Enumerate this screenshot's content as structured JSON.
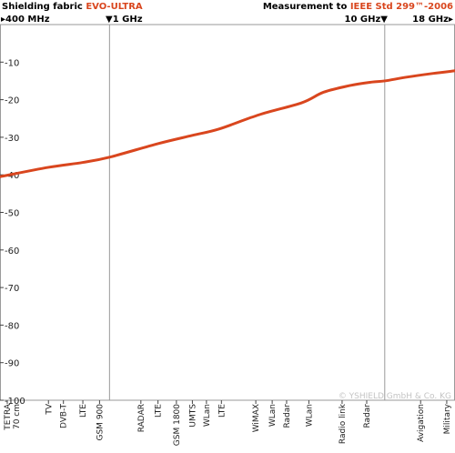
{
  "header": {
    "left_prefix": "Shielding fabric ",
    "left_product": "EVO-ULTRA",
    "right_prefix": "Measurement to ",
    "right_standard": "IEEE Std 299™-2006",
    "freq_start": "400 MHz",
    "freq_1ghz": "1 GHz",
    "freq_10ghz": "10 GHz",
    "freq_end": "18 GHz"
  },
  "copyright": "© YSHIELD GmbH & Co. KG",
  "colors": {
    "curve": "#d9461e",
    "grid": "#9a9a9a",
    "accent": "#d9461e"
  },
  "chart_data": {
    "type": "line",
    "title": "",
    "xlabel": "",
    "ylabel": "",
    "xscale": "log",
    "xlim_mhz": [
      400,
      18000
    ],
    "ylim": [
      -100,
      0
    ],
    "yticks": [
      -10,
      -20,
      -30,
      -40,
      -50,
      -60,
      -70,
      -80,
      -90,
      -100
    ],
    "marker_lines_mhz": [
      1000,
      10000
    ],
    "series": [
      {
        "x_mhz": [
          400,
          600,
          800,
          1000,
          1500,
          2000,
          2500,
          3500,
          5000,
          6000,
          7500,
          9000,
          10000,
          12000,
          15000,
          18000
        ],
        "y_db": [
          -40.5,
          -38,
          -36.7,
          -35.3,
          -31.7,
          -29.5,
          -27.8,
          -24,
          -20.8,
          -18,
          -16.2,
          -15.3,
          -15,
          -14,
          -13,
          -12.3
        ]
      }
    ],
    "categories": [
      {
        "label": "TETRA",
        "label2": "70 cm",
        "x_mhz": 400
      },
      {
        "label": "TV",
        "x_mhz": 600
      },
      {
        "label": "DVB-T",
        "x_mhz": 680
      },
      {
        "label": "LTE",
        "x_mhz": 800
      },
      {
        "label": "GSM 900",
        "x_mhz": 920
      },
      {
        "label": "RADAR",
        "x_mhz": 1300
      },
      {
        "label": "LTE",
        "x_mhz": 1500
      },
      {
        "label": "GSM 1800",
        "x_mhz": 1750
      },
      {
        "label": "UMTS",
        "x_mhz": 2000
      },
      {
        "label": "WLan",
        "x_mhz": 2250
      },
      {
        "label": "LTE",
        "x_mhz": 2550
      },
      {
        "label": "WiMAX",
        "x_mhz": 3400
      },
      {
        "label": "WLan",
        "x_mhz": 3900
      },
      {
        "label": "Radar",
        "x_mhz": 4400
      },
      {
        "label": "WLan",
        "x_mhz": 5300
      },
      {
        "label": "Radio link",
        "x_mhz": 7000
      },
      {
        "label": "Radar",
        "x_mhz": 8600
      },
      {
        "label": "Avigation",
        "x_mhz": 13500
      },
      {
        "label": "Military",
        "x_mhz": 16800
      }
    ]
  }
}
